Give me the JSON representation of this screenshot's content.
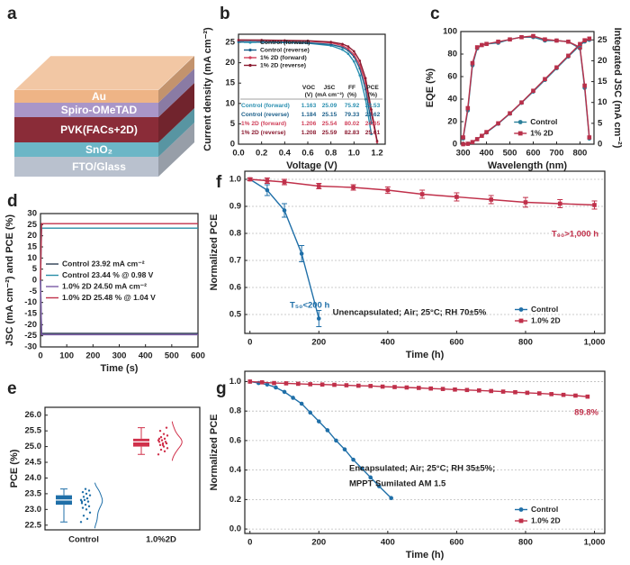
{
  "chart_data": [
    {
      "type": "diagram",
      "panel": "a",
      "layers": [
        {
          "name": "Au",
          "color": "#eeb486"
        },
        {
          "name": "Spiro-OMeTAD",
          "color": "#a996c8"
        },
        {
          "name": "PVK(FACs+2D)",
          "color": "#8a2c38"
        },
        {
          "name": "SnO₂",
          "color": "#6cb6c6"
        },
        {
          "name": "FTO/Glass",
          "color": "#b9c1ce"
        }
      ]
    },
    {
      "type": "line",
      "panel": "b",
      "xlabel": "Voltage (V)",
      "ylabel": "Current density (mA cm⁻²)",
      "x": [
        0,
        0.2,
        0.4,
        0.6,
        0.8,
        0.9,
        0.95,
        1.0,
        1.05,
        1.1,
        1.15,
        1.2
      ],
      "series": [
        {
          "name": "Control (forward)",
          "color": "#2a8fb0",
          "marker": "circle",
          "values": [
            25.09,
            25.05,
            24.95,
            24.8,
            24.2,
            23.2,
            22.2,
            20.3,
            16.9,
            11.0,
            2.5,
            null
          ]
        },
        {
          "name": "Control (reverse)",
          "color": "#1b5f8a",
          "marker": "circle",
          "values": [
            25.15,
            25.12,
            25.05,
            24.9,
            24.5,
            23.8,
            23.0,
            21.5,
            18.6,
            13.5,
            5.2,
            null
          ]
        },
        {
          "name": "1% 2D (forward)",
          "color": "#d0405a",
          "marker": "circle",
          "values": [
            25.54,
            25.5,
            25.42,
            25.3,
            24.9,
            24.2,
            23.4,
            22.0,
            19.5,
            15.0,
            7.5,
            0.5
          ]
        },
        {
          "name": "1% 2D (reverse)",
          "color": "#8b1a30",
          "marker": "circle",
          "values": [
            25.59,
            25.57,
            25.5,
            25.4,
            25.1,
            24.6,
            24.0,
            22.8,
            20.5,
            16.2,
            8.5,
            0.8
          ]
        }
      ],
      "xlim": [
        0,
        1.27
      ],
      "xticks": [
        {
          "value": 0,
          "label": "0.0"
        },
        0.2,
        0.4,
        0.6,
        0.8,
        {
          "value": 1,
          "label": "1.0"
        },
        1.2
      ],
      "ylim": [
        0,
        27
      ],
      "yticks": [
        0,
        5,
        10,
        15,
        20,
        25
      ],
      "grid": false,
      "legend": "upper left",
      "table": {
        "columns": [
          "VOC",
          "JSC",
          "FF",
          "PCE"
        ],
        "units": [
          "(V)",
          "(mA cm⁻²)",
          "(%)",
          "(%)"
        ],
        "rows": [
          [
            "Control (forward)",
            1.163,
            25.09,
            75.92,
            22.53
          ],
          [
            "Control (reverse)",
            1.184,
            25.15,
            79.33,
            23.62
          ],
          [
            "1% 2D (forward)",
            1.206,
            25.54,
            80.02,
            24.65
          ],
          [
            "1% 2D (reverse)",
            1.208,
            25.59,
            82.83,
            25.61
          ]
        ]
      }
    },
    {
      "type": "line",
      "panel": "c",
      "xlabel": "Wavelength (nm)",
      "ylabel": "EQE (%)",
      "y2label": "Integrated JSC (mA cm⁻²)",
      "x": [
        300,
        320,
        340,
        360,
        380,
        400,
        450,
        500,
        550,
        600,
        650,
        700,
        750,
        800,
        820,
        840
      ],
      "series": [
        {
          "name": "Control",
          "color": "#2a7f9a",
          "marker": "circle",
          "values": [
            5,
            30,
            70,
            85,
            88,
            89,
            90,
            93,
            95,
            95,
            92,
            92,
            91,
            85,
            50,
            5
          ]
        },
        {
          "name": "1% 2D",
          "color": "#b8304a",
          "marker": "square",
          "values": [
            6,
            32,
            72,
            86,
            88,
            89,
            91,
            93,
            95,
            96,
            93,
            92,
            91,
            86,
            52,
            6
          ]
        },
        {
          "color": "#2a7f9a",
          "marker": "circle",
          "axis": "y2",
          "values": [
            0,
            0.1,
            0.5,
            1.2,
            2.0,
            2.8,
            4.9,
            7.3,
            9.9,
            12.6,
            15.4,
            18.2,
            21.0,
            23.7,
            24.6,
            25.0
          ]
        },
        {
          "color": "#b8304a",
          "marker": "square",
          "axis": "y2",
          "values": [
            0,
            0.1,
            0.5,
            1.2,
            2.0,
            2.9,
            5.0,
            7.4,
            10.0,
            12.8,
            15.6,
            18.4,
            21.2,
            24.0,
            24.9,
            25.3
          ]
        }
      ],
      "xlim": [
        290,
        860
      ],
      "xticks": [
        300,
        400,
        500,
        600,
        700,
        800
      ],
      "ylim": [
        0,
        100
      ],
      "yticks": [
        0,
        20,
        40,
        60,
        80,
        100
      ],
      "y2lim": [
        0,
        27
      ],
      "y2ticks": [
        0,
        5,
        10,
        15,
        20,
        25
      ],
      "grid": false,
      "legend": "lower center"
    },
    {
      "type": "line",
      "panel": "d",
      "xlabel": "Time (s)",
      "ylabel": "JSC (mA cm⁻²) and PCE (%)",
      "x": [
        0,
        4,
        100,
        200,
        300,
        400,
        500,
        600
      ],
      "series": [
        {
          "name": "Control  23.92 mA cm⁻²",
          "color": "#2e3e52",
          "values": [
            0,
            -23.92,
            -23.92,
            -23.92,
            -23.92,
            -23.92,
            -23.92,
            -23.92
          ]
        },
        {
          "name": "Control  23.44 % @ 0.98 V",
          "color": "#2a8fa8",
          "values": [
            0,
            23.44,
            23.44,
            23.44,
            23.44,
            23.44,
            23.44,
            23.44
          ]
        },
        {
          "name": "1.0% 2D  24.50 mA cm⁻²",
          "color": "#7b5aa6",
          "values": [
            0,
            -24.5,
            -24.5,
            -24.5,
            -24.5,
            -24.5,
            -24.5,
            -24.5
          ]
        },
        {
          "name": "1.0% 2D  25.48 % @ 1.04 V",
          "color": "#c0304a",
          "values": [
            0,
            25.48,
            25.48,
            25.48,
            25.48,
            25.48,
            25.48,
            25.48
          ]
        }
      ],
      "xlim": [
        0,
        600
      ],
      "xticks": [
        0,
        100,
        200,
        300,
        400,
        500,
        600
      ],
      "ylim": [
        -30,
        30
      ],
      "yticks": [
        -30,
        -25,
        -20,
        -15,
        -10,
        -5,
        0,
        5,
        10,
        15,
        20,
        25,
        30
      ],
      "grid": false,
      "legend": "center left"
    },
    {
      "type": "box",
      "panel": "e",
      "ylabel": "PCE (%)",
      "categories": [
        "Control",
        "1.0%2D"
      ],
      "colors": [
        "#1f6fa8",
        "#d0304a"
      ],
      "boxes": [
        {
          "min": 22.6,
          "q1": 23.15,
          "median": 23.3,
          "q3": 23.45,
          "max": 23.65
        },
        {
          "min": 24.75,
          "q1": 25.0,
          "median": 25.15,
          "q3": 25.25,
          "max": 25.6
        }
      ],
      "points": [
        [
          22.6,
          22.7,
          22.8,
          22.9,
          23.0,
          23.05,
          23.1,
          23.15,
          23.2,
          23.25,
          23.3,
          23.3,
          23.35,
          23.4,
          23.45,
          23.5,
          23.55,
          23.6,
          23.65,
          23.25
        ],
        [
          24.75,
          24.85,
          24.9,
          24.95,
          25.0,
          25.05,
          25.1,
          25.1,
          25.15,
          25.15,
          25.2,
          25.2,
          25.25,
          25.3,
          25.35,
          25.4,
          25.5,
          25.6,
          25.05,
          25.25
        ]
      ],
      "ylim": [
        22.35,
        26.25
      ],
      "yticks": [
        22.5,
        {
          "value": 23,
          "label": "23.0"
        },
        23.5,
        {
          "value": 24,
          "label": "24.0"
        },
        24.5,
        {
          "value": 25,
          "label": "25.0"
        },
        25.5,
        {
          "value": 26,
          "label": "26.0"
        }
      ]
    },
    {
      "type": "line",
      "panel": "f",
      "xlabel": "Time (h)",
      "ylabel": "Normalized PCE",
      "series": [
        {
          "name": "Control",
          "color": "#1f6fa8",
          "marker": "circle",
          "x": [
            0,
            50,
            100,
            150,
            200
          ],
          "values": [
            1.0,
            0.96,
            0.885,
            0.725,
            0.485
          ],
          "errors": [
            0.005,
            0.02,
            0.025,
            0.03,
            0.03
          ]
        },
        {
          "name": "1.0% 2D",
          "color": "#c0304a",
          "marker": "square",
          "x": [
            0,
            50,
            100,
            200,
            300,
            400,
            500,
            600,
            700,
            800,
            900,
            1000
          ],
          "values": [
            1.0,
            0.995,
            0.99,
            0.975,
            0.97,
            0.96,
            0.945,
            0.935,
            0.925,
            0.915,
            0.91,
            0.905
          ],
          "errors": [
            0.005,
            0.01,
            0.01,
            0.01,
            0.01,
            0.012,
            0.015,
            0.015,
            0.015,
            0.018,
            0.015,
            0.015
          ]
        }
      ],
      "xlim": [
        -15,
        1030
      ],
      "xticks": [
        0,
        200,
        400,
        600,
        800,
        {
          "value": 1000,
          "label": "1,000"
        }
      ],
      "ylim": [
        0.43,
        1.03
      ],
      "yticks": [
        0.5,
        0.6,
        0.7,
        0.8,
        0.9,
        {
          "value": 1,
          "label": "1.0"
        }
      ],
      "grid": true,
      "legend": "lower right",
      "annotations": [
        "T₉₀>1,000 h",
        "T₅₀<200 h",
        "Unencapsulated; Air; 25°C; RH 70±5%"
      ]
    },
    {
      "type": "line",
      "panel": "g",
      "xlabel": "Time (h)",
      "ylabel": "Normalized PCE",
      "series": [
        {
          "name": "Control",
          "color": "#1f6fa8",
          "marker": "circle",
          "x": [
            0,
            25,
            50,
            75,
            100,
            125,
            150,
            175,
            200,
            225,
            250,
            275,
            300,
            325,
            350,
            375,
            410
          ],
          "values": [
            1.0,
            0.99,
            0.98,
            0.96,
            0.93,
            0.89,
            0.85,
            0.79,
            0.73,
            0.67,
            0.6,
            0.54,
            0.47,
            0.41,
            0.35,
            0.29,
            0.21
          ]
        },
        {
          "name": "1.0% 2D",
          "color": "#c0304a",
          "marker": "square",
          "x": [
            0,
            35,
            70,
            105,
            140,
            175,
            210,
            245,
            280,
            315,
            350,
            385,
            420,
            455,
            490,
            525,
            560,
            595,
            630,
            665,
            700,
            735,
            770,
            805,
            840,
            875,
            910,
            945,
            980
          ],
          "values": [
            1.0,
            0.995,
            0.99,
            0.988,
            0.985,
            0.982,
            0.98,
            0.978,
            0.975,
            0.972,
            0.97,
            0.966,
            0.963,
            0.96,
            0.957,
            0.953,
            0.95,
            0.946,
            0.943,
            0.94,
            0.936,
            0.932,
            0.928,
            0.924,
            0.92,
            0.915,
            0.91,
            0.905,
            0.898
          ]
        }
      ],
      "xlim": [
        -15,
        1030
      ],
      "xticks": [
        0,
        200,
        400,
        600,
        800,
        {
          "value": 1000,
          "label": "1,000"
        }
      ],
      "ylim": [
        -0.03,
        1.07
      ],
      "yticks": [
        {
          "value": 0,
          "label": "0.0"
        },
        0.2,
        0.4,
        0.6,
        0.8,
        {
          "value": 1,
          "label": "1.0"
        }
      ],
      "grid": true,
      "legend": "lower right",
      "annotations": [
        "89.8%",
        "Encapsulated; Air; 25°C; RH 35±5%;",
        "MPPT Sumilated AM 1.5"
      ]
    }
  ]
}
